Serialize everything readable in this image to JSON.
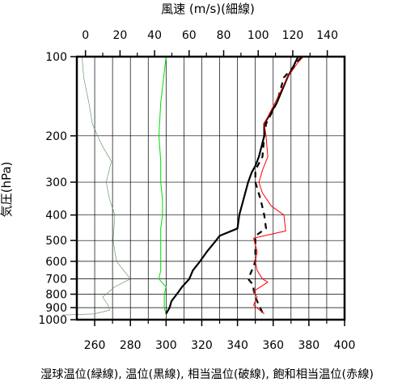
{
  "chart_data": {
    "type": "line",
    "top_axis_label": "風速 (m/s)(細線)",
    "bottom_axis_label": "湿球温位(緑線), 温位(黒線), 相当温位(破線), 飽和相当温位(赤線)",
    "ylabel": "気圧(hPa)",
    "y_scale": "log",
    "y_direction": "reversed",
    "ylim": [
      1000,
      100
    ],
    "xlim": [
      250,
      400
    ],
    "x_top_lim": [
      -5,
      150
    ],
    "grid": true,
    "xticks": [
      260,
      280,
      300,
      320,
      340,
      360,
      380,
      400
    ],
    "x_top_ticks": [
      0,
      20,
      40,
      60,
      80,
      100,
      120,
      140
    ],
    "yticks": [
      100,
      200,
      300,
      400,
      500,
      600,
      700,
      800,
      900,
      1000
    ],
    "colors": {
      "wet_bulb": "#00dd00",
      "potential": "#000000",
      "equivalent": "#000000",
      "saturated": "#ff0000",
      "wind": "#558855"
    },
    "series": [
      {
        "axis": "bottom",
        "style": "solid-thin",
        "points": [
          [
            300,
            950
          ],
          [
            299,
            900
          ],
          [
            299,
            850
          ],
          [
            299,
            800
          ],
          [
            300,
            750
          ],
          [
            296,
            700
          ],
          [
            297,
            650
          ],
          [
            297,
            600
          ],
          [
            297,
            550
          ],
          [
            297,
            500
          ],
          [
            297,
            450
          ],
          [
            298,
            400
          ],
          [
            298,
            350
          ],
          [
            297,
            300
          ],
          [
            297,
            250
          ],
          [
            296,
            200
          ],
          [
            297,
            150
          ],
          [
            300,
            100
          ]
        ]
      },
      {
        "axis": "bottom",
        "style": "solid-thick",
        "points": [
          [
            300,
            950
          ],
          [
            302,
            900
          ],
          [
            303,
            850
          ],
          [
            306,
            800
          ],
          [
            309,
            750
          ],
          [
            313,
            700
          ],
          [
            315,
            650
          ],
          [
            319,
            600
          ],
          [
            323,
            550
          ],
          [
            328,
            500
          ],
          [
            330,
            480
          ],
          [
            340,
            450
          ],
          [
            341,
            400
          ],
          [
            346,
            300
          ],
          [
            348,
            275
          ],
          [
            350,
            260
          ],
          [
            352,
            240
          ],
          [
            355,
            200
          ],
          [
            355,
            180
          ],
          [
            362,
            150
          ],
          [
            368,
            120
          ],
          [
            371,
            110
          ],
          [
            374,
            100
          ]
        ]
      },
      {
        "axis": "bottom",
        "style": "dashed",
        "points": [
          [
            354,
            940
          ],
          [
            352,
            880
          ],
          [
            350,
            820
          ],
          [
            349,
            770
          ],
          [
            349,
            740
          ],
          [
            346,
            700
          ],
          [
            348,
            650
          ],
          [
            350,
            600
          ],
          [
            350,
            550
          ],
          [
            350,
            480
          ],
          [
            356,
            450
          ],
          [
            355,
            400
          ],
          [
            353,
            350
          ],
          [
            350,
            300
          ],
          [
            350,
            270
          ],
          [
            354,
            240
          ],
          [
            355,
            200
          ],
          [
            356,
            180
          ],
          [
            362,
            150
          ],
          [
            366,
            120
          ],
          [
            371,
            110
          ],
          [
            376,
            100
          ]
        ]
      },
      {
        "axis": "bottom",
        "style": "solid-thin",
        "points": [
          [
            355,
            950
          ],
          [
            349,
            880
          ],
          [
            351,
            820
          ],
          [
            349,
            780
          ],
          [
            357,
            720
          ],
          [
            354,
            700
          ],
          [
            351,
            650
          ],
          [
            350,
            600
          ],
          [
            351,
            550
          ],
          [
            349,
            490
          ],
          [
            367,
            460
          ],
          [
            366,
            400
          ],
          [
            359,
            370
          ],
          [
            354,
            330
          ],
          [
            352,
            300
          ],
          [
            354,
            270
          ],
          [
            357,
            240
          ],
          [
            356,
            200
          ],
          [
            355,
            180
          ],
          [
            361,
            150
          ],
          [
            368,
            120
          ],
          [
            374,
            105
          ],
          [
            377,
            100
          ]
        ]
      },
      {
        "axis": "top",
        "style": "solid-hair",
        "points": [
          [
            -13,
            960
          ],
          [
            5,
            950
          ],
          [
            14,
            920
          ],
          [
            13,
            880
          ],
          [
            10,
            820
          ],
          [
            17,
            750
          ],
          [
            26,
            700
          ],
          [
            18,
            600
          ],
          [
            17,
            550
          ],
          [
            16,
            500
          ],
          [
            17,
            400
          ],
          [
            14,
            350
          ],
          [
            12,
            300
          ],
          [
            15,
            250
          ],
          [
            10,
            220
          ],
          [
            7,
            200
          ],
          [
            4,
            180
          ],
          [
            2,
            150
          ],
          [
            -1,
            120
          ],
          [
            -2,
            100
          ]
        ]
      }
    ]
  }
}
